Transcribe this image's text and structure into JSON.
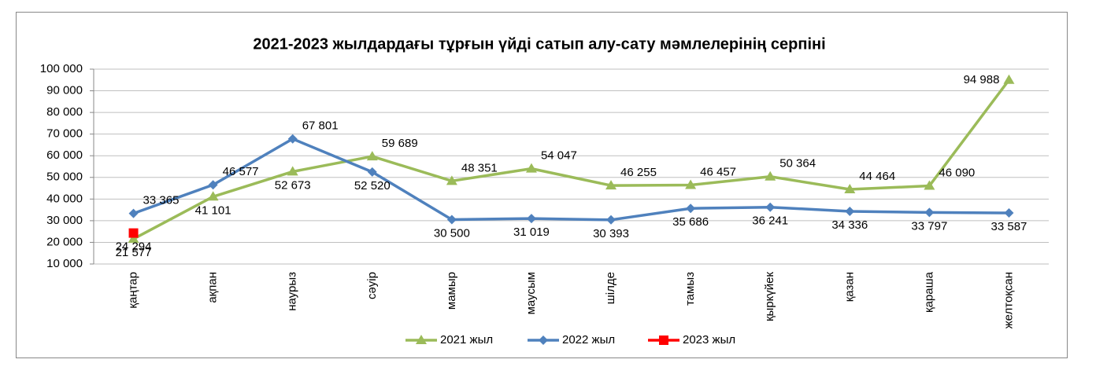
{
  "chart_data": {
    "type": "line",
    "title": "2021-2023 жылдардағы тұрғын үйді сатып алу-сату мәмлелерінің серпіні",
    "categories": [
      "қаңтар",
      "ақпан",
      "наурыз",
      "сәуір",
      "мамыр",
      "маусым",
      "шілде",
      "тамыз",
      "қыркүйек",
      "қазан",
      "қараша",
      "желтоқсан"
    ],
    "series": [
      {
        "name": "2021 жыл",
        "color": "#9bbb59",
        "marker": "triangle",
        "values": [
          21577,
          41101,
          52673,
          59689,
          48351,
          54047,
          46255,
          46457,
          50364,
          44464,
          46090,
          94988
        ],
        "value_labels": [
          "21 577",
          "41 101",
          "52 673",
          "59 689",
          "48 351",
          "54 047",
          "46 255",
          "46 457",
          "50 364",
          "44 464",
          "46 090",
          "94 988"
        ]
      },
      {
        "name": "2022 жыл",
        "color": "#4f81bd",
        "marker": "diamond",
        "values": [
          33365,
          46577,
          67801,
          52520,
          30500,
          31019,
          30393,
          35686,
          36241,
          34336,
          33797,
          33587
        ],
        "value_labels": [
          "33 365",
          "46 577",
          "67 801",
          "52 520",
          "30 500",
          "31 019",
          "30 393",
          "35 686",
          "36 241",
          "34 336",
          "33 797",
          "33 587"
        ]
      },
      {
        "name": "2023 жыл",
        "color": "#ff0000",
        "marker": "square",
        "values": [
          24294,
          null,
          null,
          null,
          null,
          null,
          null,
          null,
          null,
          null,
          null,
          null
        ],
        "value_labels": [
          "24 294",
          null,
          null,
          null,
          null,
          null,
          null,
          null,
          null,
          null,
          null,
          null
        ]
      }
    ],
    "ylim": [
      10000,
      100000
    ],
    "yticks": [
      {
        "value": 10000,
        "label": "10 000"
      },
      {
        "value": 20000,
        "label": "20 000"
      },
      {
        "value": 30000,
        "label": "30 000"
      },
      {
        "value": 40000,
        "label": "40 000"
      },
      {
        "value": 50000,
        "label": "50 000"
      },
      {
        "value": 60000,
        "label": "60 000"
      },
      {
        "value": 70000,
        "label": "70 000"
      },
      {
        "value": 80000,
        "label": "80 000"
      },
      {
        "value": 90000,
        "label": "90 000"
      },
      {
        "value": 100000,
        "label": "100 000"
      }
    ],
    "grid": true,
    "legend": "bottom"
  }
}
